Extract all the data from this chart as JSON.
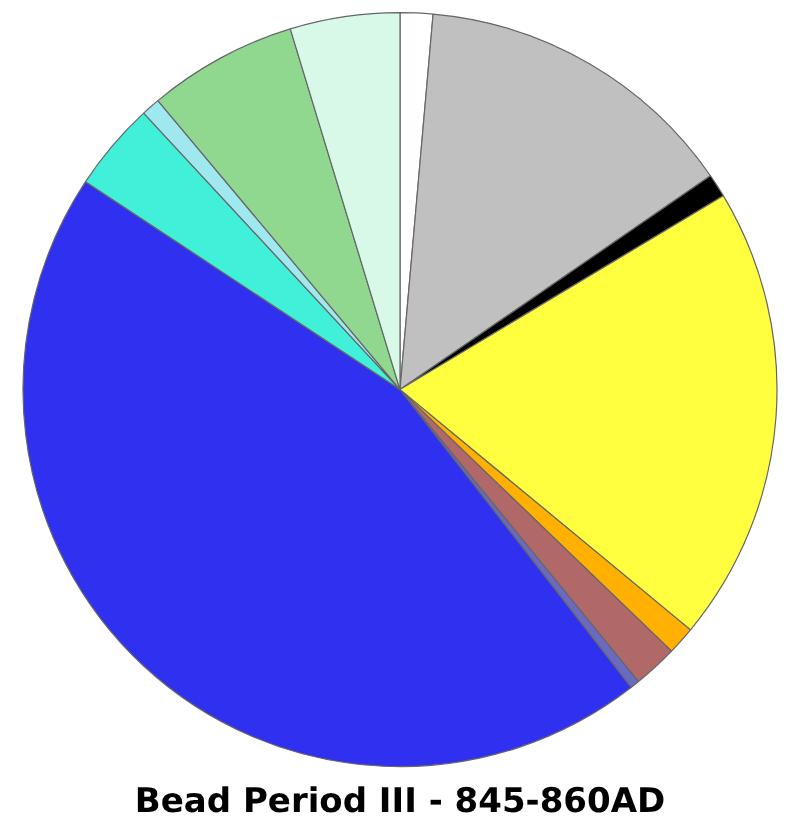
{
  "chart_data": {
    "type": "pie",
    "title": "Bead Period III - 845-860AD",
    "categories": [
      null,
      null,
      null,
      null,
      null,
      null,
      null,
      null,
      null,
      null,
      null,
      null
    ],
    "values": [
      1.4,
      14,
      1,
      19.6,
      1.2,
      1.9,
      0.4,
      44.8,
      3.8,
      0.8,
      6.4,
      4.7
    ],
    "colors": [
      "#ffffff",
      "#c0c0c0",
      "#000000",
      "#ffff40",
      "#ffb000",
      "#b06868",
      "#6a6ac0",
      "#3030f0",
      "#40f0d8",
      "#a0e8f0",
      "#90d890",
      "#d8f8e8"
    ],
    "legend": false
  }
}
